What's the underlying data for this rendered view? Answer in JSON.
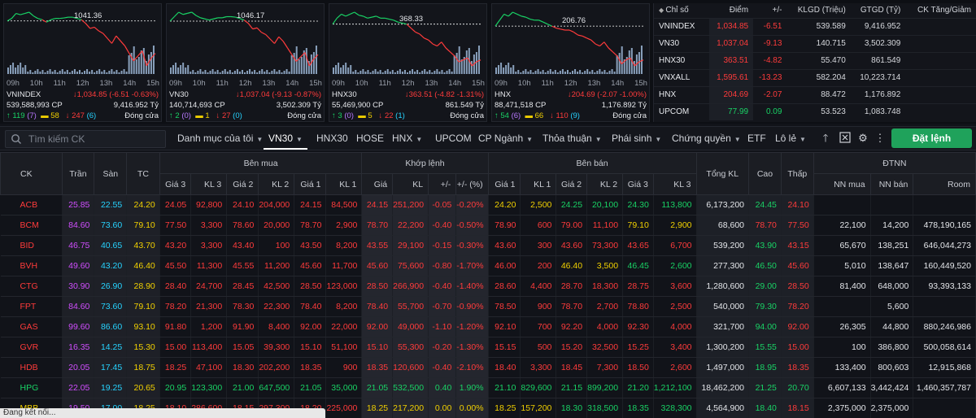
{
  "mini_charts": [
    {
      "name": "VNINDEX",
      "ref_label": "1041.36",
      "times": [
        "09h",
        "10h",
        "11h",
        "12h",
        "13h",
        "14h",
        "15h"
      ],
      "value_text": "1,034.85 (-6.51 -0.63%)",
      "volume_text": "539,588,993 CP",
      "value_amount": "9,416.952 Tỷ",
      "adv": "119",
      "ceil": "7",
      "ref": "58",
      "dec": "247",
      "floor": "6",
      "status": "Đóng cửa",
      "series": [
        0.0,
        0.1,
        0.3,
        0.25,
        0.3,
        0.35,
        0.2,
        0.1,
        0.05,
        -0.05,
        0.05,
        0.1,
        0.1,
        0.12,
        0.15,
        0.15,
        0.1,
        0.05,
        -0.1,
        -0.3,
        -0.25,
        -0.4,
        -0.5,
        -0.7,
        -0.9,
        -0.6,
        -0.8,
        -1.0,
        -1.3,
        -1.6,
        -1.4,
        -1.2,
        -1.8,
        -1.5,
        -1.3
      ]
    },
    {
      "name": "VN30",
      "ref_label": "1046.17",
      "times": [
        "09h",
        "10h",
        "11h",
        "12h",
        "13h",
        "14h",
        "15h"
      ],
      "value_text": "1,037.04 (-9.13 -0.87%)",
      "volume_text": "140,714,693 CP",
      "value_amount": "3,502.309 Tỷ",
      "adv": "2",
      "ceil": "0",
      "ref": "1",
      "dec": "27",
      "floor": "0",
      "status": "Đóng cửa",
      "series": [
        0.0,
        0.2,
        0.4,
        0.3,
        0.35,
        0.4,
        0.25,
        0.15,
        0.1,
        0.05,
        0.1,
        0.15,
        0.15,
        0.2,
        0.2,
        0.18,
        0.12,
        0.05,
        -0.1,
        -0.35,
        -0.3,
        -0.5,
        -0.6,
        -0.8,
        -1.0,
        -0.7,
        -0.9,
        -1.2,
        -1.5,
        -1.8,
        -1.6,
        -1.4,
        -2.0,
        -1.7,
        -1.5
      ]
    },
    {
      "name": "HNX30",
      "ref_label": "368.33",
      "times": [
        "09h",
        "10h",
        "11h",
        "12h",
        "13h",
        "14h",
        "15h"
      ],
      "value_text": "363.51 (-4.82 -1.31%)",
      "volume_text": "55,469,900 CP",
      "value_amount": "861.549 Tỷ",
      "adv": "3",
      "ceil": "0",
      "ref": "5",
      "dec": "22",
      "floor": "1",
      "status": "Đóng cửa",
      "series": [
        0.0,
        0.3,
        0.5,
        0.4,
        0.5,
        0.6,
        0.45,
        0.4,
        0.3,
        0.35,
        0.4,
        0.3,
        0.3,
        0.25,
        0.2,
        0.1,
        0.05,
        0.0,
        -0.2,
        -0.4,
        -0.5,
        -0.7,
        -0.8,
        -1.0,
        -1.1,
        -0.9,
        -1.2,
        -1.4,
        -1.6,
        -1.9,
        -1.8,
        -1.7,
        -2.1,
        -1.9,
        -1.8
      ]
    },
    {
      "name": "HNX",
      "ref_label": "206.76",
      "times": [
        "09h",
        "10h",
        "11h",
        "12h",
        "13h",
        "14h",
        "15h"
      ],
      "value_text": "204.69 (-2.07 -1.00%)",
      "volume_text": "88,471,518 CP",
      "value_amount": "1,176.892 Tỷ",
      "adv": "54",
      "ceil": "6",
      "ref": "66",
      "dec": "110",
      "floor": "9",
      "status": "Đóng cửa",
      "series": [
        0.0,
        0.3,
        0.6,
        0.5,
        0.7,
        0.6,
        0.5,
        0.45,
        0.35,
        0.3,
        0.3,
        0.2,
        0.1,
        0.0,
        -0.1,
        -0.15,
        -0.2,
        -0.2,
        -0.3,
        -0.45,
        -0.5,
        -0.6,
        -0.7,
        -0.9,
        -1.0,
        -0.8,
        -1.1,
        -1.3,
        -1.5,
        -1.9,
        -1.7,
        -1.6,
        -2.0,
        -1.8,
        -1.7
      ]
    }
  ],
  "index_table": {
    "headers": [
      "Chỉ số",
      "Điểm",
      "+/-",
      "KLGD (Triệu)",
      "GTGD (Tỷ)",
      "CK Tăng/Giảm"
    ],
    "rows": [
      {
        "name": "VNINDEX",
        "point": "1,034.85",
        "change": "-6.51",
        "vol": "539.589",
        "val": "9,416.952",
        "color": "#ff3b3b"
      },
      {
        "name": "VN30",
        "point": "1,037.04",
        "change": "-9.13",
        "vol": "140.715",
        "val": "3,502.309",
        "color": "#ff3b3b"
      },
      {
        "name": "HNX30",
        "point": "363.51",
        "change": "-4.82",
        "vol": "55.470",
        "val": "861.549",
        "color": "#ff3b3b"
      },
      {
        "name": "VNXALL",
        "point": "1,595.61",
        "change": "-13.23",
        "vol": "582.204",
        "val": "10,223.714",
        "color": "#ff3b3b"
      },
      {
        "name": "HNX",
        "point": "204.69",
        "change": "-2.07",
        "vol": "88.472",
        "val": "1,176.892",
        "color": "#ff3b3b"
      },
      {
        "name": "UPCOM",
        "point": "77.99",
        "change": "0.09",
        "vol": "53.523",
        "val": "1,083.748",
        "color": "#19d265"
      }
    ]
  },
  "toolbar": {
    "search_placeholder": "Tìm kiếm CK",
    "tabs": [
      "Danh mục của tôi",
      "VN30",
      "HNX30",
      "HOSE",
      "HNX",
      "UPCOM",
      "CP Ngành",
      "Thỏa thuận",
      "Phái sinh",
      "Chứng quyền",
      "ETF",
      "Lô lẻ"
    ],
    "order_button": "Đặt lệnh"
  },
  "grid": {
    "group_headers": {
      "ck": "CK",
      "tran": "Trần",
      "san": "Sàn",
      "tc": "TC",
      "ben_mua": "Bên mua",
      "khop": "Khớp lệnh",
      "ben_ban": "Bên bán",
      "tong_kl": "Tổng KL",
      "cao": "Cao",
      "thap": "Thấp",
      "dtnn": "ĐTNN"
    },
    "sub_headers": [
      "Giá 3",
      "KL 3",
      "Giá 2",
      "KL 2",
      "Giá 1",
      "KL 1",
      "Giá",
      "KL",
      "+/-",
      "+/- (%)",
      "Giá 1",
      "KL 1",
      "Giá 2",
      "KL 2",
      "Giá 3",
      "KL 3",
      "NN mua",
      "NN bán",
      "Room"
    ],
    "rows": [
      {
        "ck": "ACB",
        "tran": "25.85",
        "san": "22.55",
        "tc": "24.20",
        "b3": "24.05",
        "bk3": "92,800",
        "b2": "24.10",
        "bk2": "204,000",
        "b1": "24.15",
        "bk1": "84,500",
        "p": "24.15",
        "kl": "251,200",
        "ch": "-0.05",
        "pct": "-0.20%",
        "s1": "24.20",
        "sk1": "2,500",
        "s2": "24.25",
        "sk2": "20,100",
        "s3": "24.30",
        "sk3": "113,800",
        "tot": "6,173,200",
        "hi": "24.45",
        "lo": "24.10",
        "nnm": "",
        "nnb": "",
        "room": "",
        "cls": {
          "ck": "down",
          "b3": "down",
          "b2": "down",
          "b1": "down",
          "p": "down",
          "ch": "down",
          "s1": "ref",
          "s2": "up",
          "s3": "up",
          "hi": "up",
          "lo": "down"
        }
      },
      {
        "ck": "BCM",
        "tran": "84.60",
        "san": "73.60",
        "tc": "79.10",
        "b3": "77.50",
        "bk3": "3,300",
        "b2": "78.60",
        "bk2": "20,000",
        "b1": "78.70",
        "bk1": "2,900",
        "p": "78.70",
        "kl": "22,200",
        "ch": "-0.40",
        "pct": "-0.50%",
        "s1": "78.90",
        "sk1": "600",
        "s2": "79.00",
        "sk2": "11,100",
        "s3": "79.10",
        "sk3": "2,900",
        "tot": "68,600",
        "hi": "78.70",
        "lo": "77.50",
        "nnm": "22,100",
        "nnb": "14,200",
        "room": "478,190,165",
        "cls": {
          "ck": "down",
          "b3": "down",
          "b2": "down",
          "b1": "down",
          "p": "down",
          "ch": "down",
          "s1": "down",
          "s2": "down",
          "s3": "ref",
          "hi": "down",
          "lo": "down"
        }
      },
      {
        "ck": "BID",
        "tran": "46.75",
        "san": "40.65",
        "tc": "43.70",
        "b3": "43.20",
        "bk3": "3,300",
        "b2": "43.40",
        "bk2": "100",
        "b1": "43.50",
        "bk1": "8,200",
        "p": "43.55",
        "kl": "29,100",
        "ch": "-0.15",
        "pct": "-0.30%",
        "s1": "43.60",
        "sk1": "300",
        "s2": "43.60",
        "sk2": "73,300",
        "s3": "43.65",
        "sk3": "6,700",
        "tot": "539,200",
        "hi": "43.90",
        "lo": "43.15",
        "nnm": "65,670",
        "nnb": "138,251",
        "room": "646,044,273",
        "cls": {
          "ck": "down",
          "b3": "down",
          "b2": "down",
          "b1": "down",
          "p": "down",
          "ch": "down",
          "s1": "down",
          "s2": "down",
          "s3": "down",
          "hi": "up",
          "lo": "down"
        }
      },
      {
        "ck": "BVH",
        "tran": "49.60",
        "san": "43.20",
        "tc": "46.40",
        "b3": "45.50",
        "bk3": "11,300",
        "b2": "45.55",
        "bk2": "11,200",
        "b1": "45.60",
        "bk1": "11,700",
        "p": "45.60",
        "kl": "75,600",
        "ch": "-0.80",
        "pct": "-1.70%",
        "s1": "46.00",
        "sk1": "200",
        "s2": "46.40",
        "sk2": "3,500",
        "s3": "46.45",
        "sk3": "2,600",
        "tot": "277,300",
        "hi": "46.50",
        "lo": "45.60",
        "nnm": "5,010",
        "nnb": "138,647",
        "room": "160,449,520",
        "cls": {
          "ck": "down",
          "b3": "down",
          "b2": "down",
          "b1": "down",
          "p": "down",
          "ch": "down",
          "s1": "down",
          "s2": "ref",
          "s3": "up",
          "hi": "up",
          "lo": "down"
        }
      },
      {
        "ck": "CTG",
        "tran": "30.90",
        "san": "26.90",
        "tc": "28.90",
        "b3": "28.40",
        "bk3": "24,700",
        "b2": "28.45",
        "bk2": "42,500",
        "b1": "28.50",
        "bk1": "123,000",
        "p": "28.50",
        "kl": "266,900",
        "ch": "-0.40",
        "pct": "-1.40%",
        "s1": "28.60",
        "sk1": "4,400",
        "s2": "28.70",
        "sk2": "18,300",
        "s3": "28.75",
        "sk3": "3,600",
        "tot": "1,280,600",
        "hi": "29.00",
        "lo": "28.50",
        "nnm": "81,400",
        "nnb": "648,000",
        "room": "93,393,133",
        "cls": {
          "ck": "down",
          "b3": "down",
          "b2": "down",
          "b1": "down",
          "p": "down",
          "ch": "down",
          "s1": "down",
          "s2": "down",
          "s3": "down",
          "hi": "up",
          "lo": "down"
        }
      },
      {
        "ck": "FPT",
        "tran": "84.60",
        "san": "73.60",
        "tc": "79.10",
        "b3": "78.20",
        "bk3": "21,300",
        "b2": "78.30",
        "bk2": "22,300",
        "b1": "78.40",
        "bk1": "8,200",
        "p": "78.40",
        "kl": "55,700",
        "ch": "-0.70",
        "pct": "-0.90%",
        "s1": "78.50",
        "sk1": "900",
        "s2": "78.70",
        "sk2": "2,700",
        "s3": "78.80",
        "sk3": "2,500",
        "tot": "540,000",
        "hi": "79.30",
        "lo": "78.20",
        "nnm": "",
        "nnb": "5,600",
        "room": "",
        "cls": {
          "ck": "down",
          "b3": "down",
          "b2": "down",
          "b1": "down",
          "p": "down",
          "ch": "down",
          "s1": "down",
          "s2": "down",
          "s3": "down",
          "hi": "up",
          "lo": "down"
        }
      },
      {
        "ck": "GAS",
        "tran": "99.60",
        "san": "86.60",
        "tc": "93.10",
        "b3": "91.80",
        "bk3": "1,200",
        "b2": "91.90",
        "bk2": "8,400",
        "b1": "92.00",
        "bk1": "22,000",
        "p": "92.00",
        "kl": "49,000",
        "ch": "-1.10",
        "pct": "-1.20%",
        "s1": "92.10",
        "sk1": "700",
        "s2": "92.20",
        "sk2": "4,000",
        "s3": "92.30",
        "sk3": "4,000",
        "tot": "321,700",
        "hi": "94.00",
        "lo": "92.00",
        "nnm": "26,305",
        "nnb": "44,800",
        "room": "880,246,986",
        "cls": {
          "ck": "down",
          "b3": "down",
          "b2": "down",
          "b1": "down",
          "p": "down",
          "ch": "down",
          "s1": "down",
          "s2": "down",
          "s3": "down",
          "hi": "up",
          "lo": "down"
        }
      },
      {
        "ck": "GVR",
        "tran": "16.35",
        "san": "14.25",
        "tc": "15.30",
        "b3": "15.00",
        "bk3": "113,400",
        "b2": "15.05",
        "bk2": "39,300",
        "b1": "15.10",
        "bk1": "51,100",
        "p": "15.10",
        "kl": "55,300",
        "ch": "-0.20",
        "pct": "-1.30%",
        "s1": "15.15",
        "sk1": "500",
        "s2": "15.20",
        "sk2": "32,500",
        "s3": "15.25",
        "sk3": "3,400",
        "tot": "1,300,200",
        "hi": "15.55",
        "lo": "15.00",
        "nnm": "100",
        "nnb": "386,800",
        "room": "500,058,614",
        "cls": {
          "ck": "down",
          "b3": "down",
          "b2": "down",
          "b1": "down",
          "p": "down",
          "ch": "down",
          "s1": "down",
          "s2": "down",
          "s3": "down",
          "hi": "up",
          "lo": "down"
        }
      },
      {
        "ck": "HDB",
        "tran": "20.05",
        "san": "17.45",
        "tc": "18.75",
        "b3": "18.25",
        "bk3": "47,100",
        "b2": "18.30",
        "bk2": "202,200",
        "b1": "18.35",
        "bk1": "900",
        "p": "18.35",
        "kl": "120,600",
        "ch": "-0.40",
        "pct": "-2.10%",
        "s1": "18.40",
        "sk1": "3,300",
        "s2": "18.45",
        "sk2": "7,300",
        "s3": "18.50",
        "sk3": "2,600",
        "tot": "1,497,000",
        "hi": "18.95",
        "lo": "18.35",
        "nnm": "133,400",
        "nnb": "800,603",
        "room": "12,915,868",
        "cls": {
          "ck": "down",
          "b3": "down",
          "b2": "down",
          "b1": "down",
          "p": "down",
          "ch": "down",
          "s1": "down",
          "s2": "down",
          "s3": "down",
          "hi": "up",
          "lo": "down"
        }
      },
      {
        "ck": "HPG",
        "tran": "22.05",
        "san": "19.25",
        "tc": "20.65",
        "b3": "20.95",
        "bk3": "123,300",
        "b2": "21.00",
        "bk2": "647,500",
        "b1": "21.05",
        "bk1": "35,000",
        "p": "21.05",
        "kl": "532,500",
        "ch": "0.40",
        "pct": "1.90%",
        "s1": "21.10",
        "sk1": "829,600",
        "s2": "21.15",
        "sk2": "899,200",
        "s3": "21.20",
        "sk3": "1,212,100",
        "tot": "18,462,200",
        "hi": "21.25",
        "lo": "20.70",
        "nnm": "6,607,133",
        "nnb": "3,442,424",
        "room": "1,460,357,787",
        "cls": {
          "ck": "up",
          "b3": "up",
          "b2": "up",
          "b1": "up",
          "p": "up",
          "ch": "up",
          "s1": "up",
          "s2": "up",
          "s3": "up",
          "hi": "up",
          "lo": "up"
        }
      },
      {
        "ck": "MBB",
        "tran": "19.50",
        "san": "17.00",
        "tc": "18.25",
        "b3": "18.10",
        "bk3": "286,600",
        "b2": "18.15",
        "bk2": "297,300",
        "b1": "18.20",
        "bk1": "225,000",
        "p": "18.25",
        "kl": "217,200",
        "ch": "0.00",
        "pct": "0.00%",
        "s1": "18.25",
        "sk1": "157,200",
        "s2": "18.30",
        "sk2": "318,500",
        "s3": "18.35",
        "sk3": "328,300",
        "tot": "4,564,900",
        "hi": "18.40",
        "lo": "18.15",
        "nnm": "2,375,000",
        "nnb": "2,375,000",
        "room": "",
        "cls": {
          "ck": "ref",
          "b3": "down",
          "b2": "down",
          "b1": "down",
          "p": "ref",
          "ch": "ref",
          "s1": "ref",
          "s2": "up",
          "s3": "up",
          "hi": "up",
          "lo": "down"
        }
      }
    ]
  },
  "status_bar": "Đang kết nối..."
}
